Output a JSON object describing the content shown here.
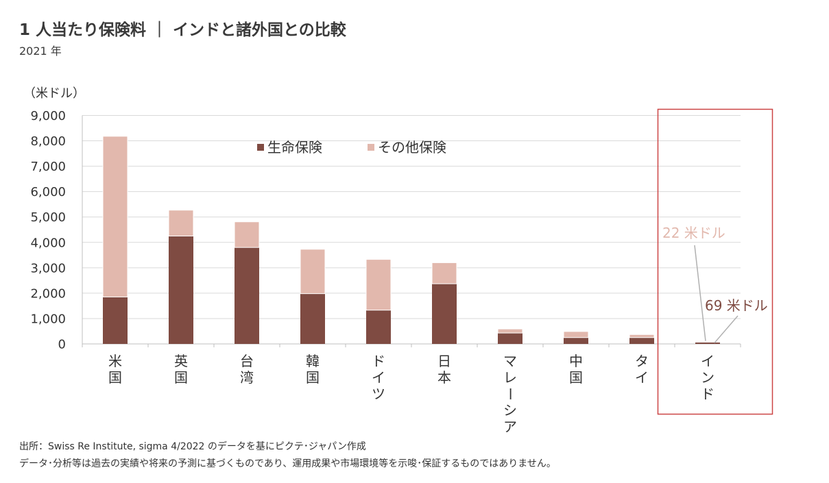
{
  "header": {
    "title": "1 人当たり保険料 ｜ インドと諸外国との比較",
    "subtitle": "2021 年"
  },
  "colors": {
    "life": "#7f4b42",
    "other": "#e2b8ad",
    "highlight_box": "#cc4444",
    "grid": "#d9d9d9",
    "axis": "#bfbfbf",
    "text": "#333333"
  },
  "chart_data": {
    "type": "bar",
    "stacked": true,
    "ylabel": "（米ドル）",
    "ylim": [
      0,
      9000
    ],
    "yticks": [
      0,
      1000,
      2000,
      3000,
      4000,
      5000,
      6000,
      7000,
      8000,
      9000
    ],
    "ytick_labels": [
      "0",
      "1,000",
      "2,000",
      "3,000",
      "4,000",
      "5,000",
      "6,000",
      "7,000",
      "8,000",
      "9,000"
    ],
    "grid": true,
    "legend_position": "top-center",
    "categories": [
      "米国",
      "英国",
      "台湾",
      "韓国",
      "ドイツ",
      "日本",
      "マレーシア",
      "中国",
      "タイ",
      "インド"
    ],
    "series": [
      {
        "name": "生命保険",
        "values": [
          1850,
          4250,
          3800,
          1980,
          1330,
          2370,
          430,
          250,
          250,
          69
        ]
      },
      {
        "name": "その他保険",
        "values": [
          6330,
          1020,
          1010,
          1750,
          2000,
          830,
          160,
          240,
          120,
          22
        ]
      }
    ],
    "annotations": [
      {
        "text": "22 米ドル",
        "category": "インド",
        "series": "その他保険"
      },
      {
        "text": "69 米ドル",
        "category": "インド",
        "series": "生命保険"
      }
    ],
    "highlight_category": "インド"
  },
  "footer": {
    "source": "出所：Swiss Re Institute, sigma 4/2022 のデータを基にピクテ･ジャパン作成",
    "disclaimer": "データ･分析等は過去の実績や将来の予測に基づくものであり、運用成果や市場環境等を示唆･保証するものではありません。"
  }
}
